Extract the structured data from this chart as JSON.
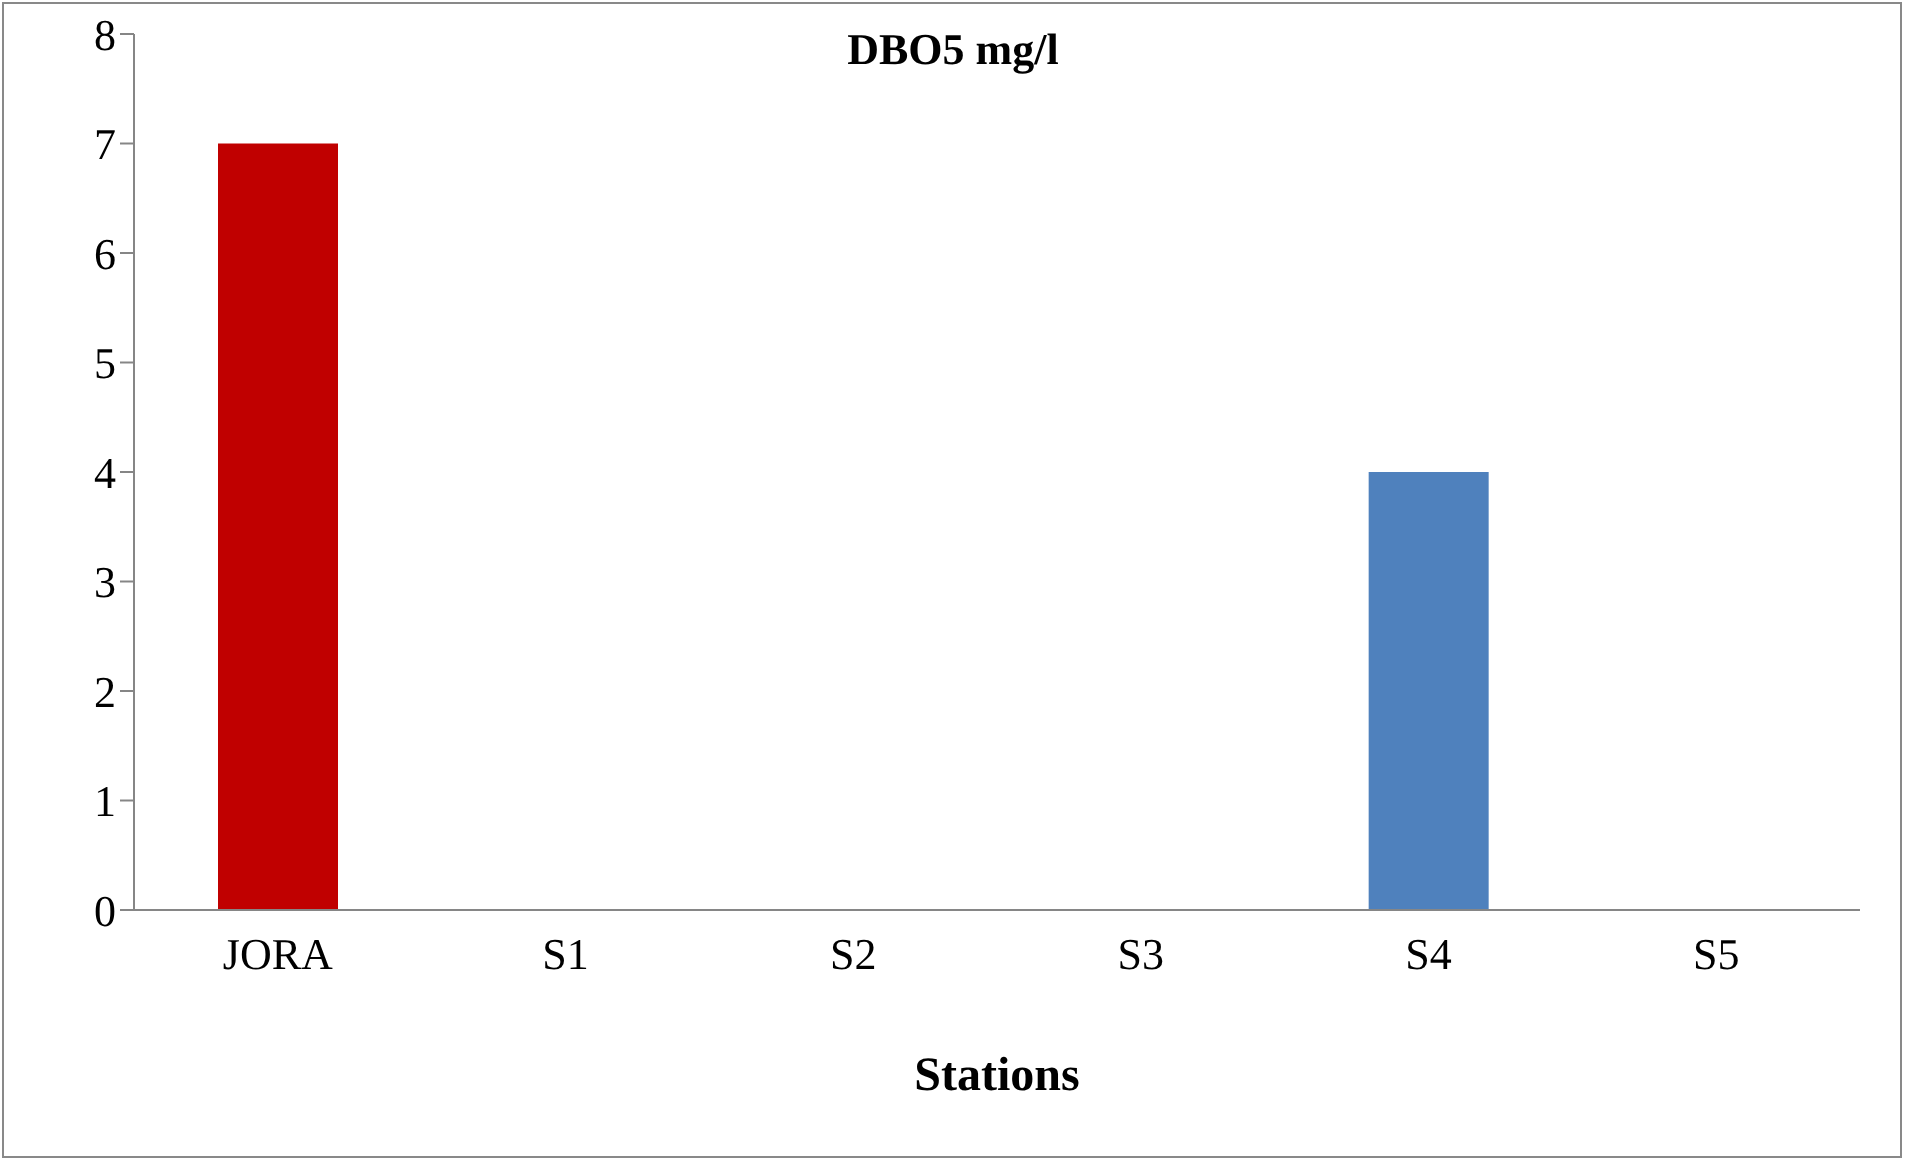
{
  "chart_data": {
    "type": "bar",
    "title": "DBO5 mg/l",
    "xlabel": "Stations",
    "categories": [
      "JORA",
      "S1",
      "S2",
      "S3",
      "S4",
      "S5"
    ],
    "values": [
      7,
      0,
      0,
      0,
      4,
      0
    ],
    "colors": [
      "#c00000",
      "#4f81bd",
      "#4f81bd",
      "#4f81bd",
      "#4f81bd",
      "#4f81bd"
    ],
    "ylim": [
      0,
      8
    ],
    "yticks": [
      0,
      1,
      2,
      3,
      4,
      5,
      6,
      7,
      8
    ],
    "grid": false,
    "legend": false
  }
}
